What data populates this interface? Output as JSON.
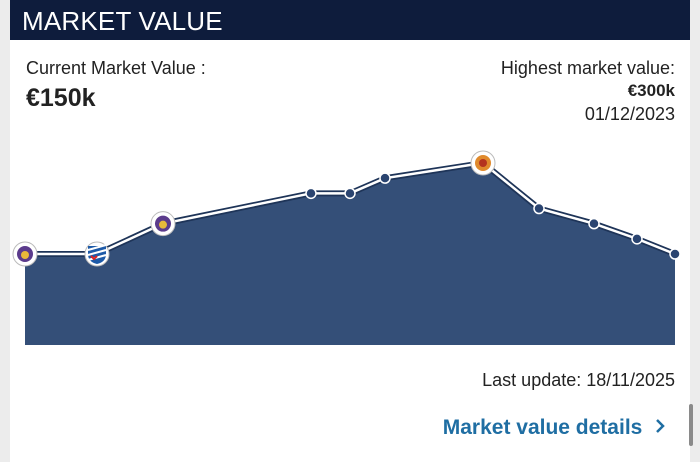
{
  "header": {
    "title": "MARKET VALUE"
  },
  "current": {
    "label": "Current Market Value :",
    "value": "€150k"
  },
  "highest": {
    "label": "Highest market value:",
    "value": "€300k",
    "date": "01/12/2023"
  },
  "chart_data": {
    "type": "area",
    "values": [
      150,
      150,
      200,
      250,
      250,
      275,
      300,
      225,
      200,
      175,
      150
    ],
    "color": "#344f78"
  },
  "last_update": "Last update: 18/11/2025",
  "details_link": "Market value details"
}
